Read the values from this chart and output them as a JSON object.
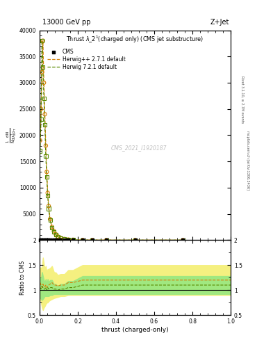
{
  "title_top": "13000 GeV pp",
  "title_right": "Z+Jet",
  "plot_title": "Thrust $\\lambda$_2$^1$(charged only) (CMS jet substructure)",
  "xlabel": "thrust (charged-only)",
  "ylabel_ratio": "Ratio to CMS",
  "right_label_top": "Rivet 3.1.10, ≥ 2.7M events",
  "right_label_bot": "mcplots.cern.ch [arXiv:1306.3436]",
  "watermark": "CMS_2021_I1920187",
  "xlim": [
    0.0,
    1.0
  ],
  "ylim_main": [
    0,
    40000
  ],
  "ylim_ratio": [
    0.5,
    2.0
  ],
  "yticks_main": [
    0,
    5000,
    10000,
    15000,
    20000,
    25000,
    30000,
    35000,
    40000
  ],
  "herwig_pp_x": [
    0.0025,
    0.0075,
    0.0125,
    0.0175,
    0.0225,
    0.0275,
    0.0325,
    0.0375,
    0.0425,
    0.0475,
    0.055,
    0.065,
    0.075,
    0.085,
    0.095,
    0.11,
    0.13,
    0.15,
    0.175,
    0.225,
    0.275,
    0.35,
    0.5,
    0.75
  ],
  "herwig_pp_y": [
    19000,
    25000,
    32000,
    38000,
    30000,
    24000,
    18000,
    13000,
    9000,
    6500,
    4000,
    2500,
    1700,
    1100,
    700,
    400,
    200,
    100,
    60,
    20,
    10,
    5,
    2,
    1
  ],
  "herwig7_x": [
    0.0025,
    0.0075,
    0.0125,
    0.0175,
    0.0225,
    0.0275,
    0.0325,
    0.0375,
    0.0425,
    0.0475,
    0.055,
    0.065,
    0.075,
    0.085,
    0.095,
    0.11,
    0.13,
    0.15,
    0.175,
    0.225,
    0.275,
    0.35,
    0.5,
    0.75
  ],
  "herwig7_y": [
    17000,
    23000,
    38000,
    33000,
    27000,
    22000,
    16000,
    12000,
    8500,
    6000,
    3800,
    2400,
    1600,
    1000,
    650,
    380,
    190,
    95,
    55,
    18,
    9,
    4,
    2,
    1
  ],
  "herwig_pp_color": "#d4820a",
  "herwig7_color": "#5a8a00",
  "cms_color": "#000000",
  "band_pp_color": "#f5f080",
  "band_h7_color": "#a0e880",
  "ratio_herwig_pp": [
    1.15,
    1.1,
    1.05,
    1.12,
    1.08,
    1.06,
    1.1,
    1.05,
    1.08,
    1.1,
    1.12,
    1.15,
    1.1,
    1.1,
    1.08,
    1.1,
    1.1,
    1.15,
    1.15,
    1.2,
    1.2,
    1.2,
    1.2,
    1.2
  ],
  "ratio_herwig7": [
    1.05,
    1.02,
    1.08,
    1.05,
    1.02,
    1.02,
    1.05,
    1.0,
    1.05,
    1.02,
    1.05,
    1.05,
    1.02,
    1.02,
    1.0,
    1.02,
    1.02,
    1.05,
    1.05,
    1.1,
    1.1,
    1.1,
    1.1,
    1.1
  ],
  "band_pp_lo": [
    0.85,
    0.75,
    0.65,
    0.6,
    0.65,
    0.68,
    0.72,
    0.75,
    0.75,
    0.78,
    0.8,
    0.82,
    0.84,
    0.85,
    0.86,
    0.88,
    0.88,
    0.9,
    0.9,
    0.9,
    0.9,
    0.9,
    0.9,
    0.9
  ],
  "band_pp_hi": [
    1.45,
    1.45,
    1.45,
    1.65,
    1.52,
    1.44,
    1.48,
    1.35,
    1.42,
    1.42,
    1.44,
    1.48,
    1.36,
    1.35,
    1.3,
    1.32,
    1.32,
    1.4,
    1.4,
    1.5,
    1.5,
    1.5,
    1.5,
    1.5
  ],
  "band_h7_lo": [
    0.85,
    0.82,
    0.8,
    0.82,
    0.85,
    0.88,
    0.88,
    0.88,
    0.88,
    0.88,
    0.9,
    0.9,
    0.92,
    0.92,
    0.92,
    0.92,
    0.92,
    0.92,
    0.92,
    0.92,
    0.92,
    0.92,
    0.92,
    0.92
  ],
  "band_h7_hi": [
    1.25,
    1.22,
    1.36,
    1.28,
    1.2,
    1.16,
    1.22,
    1.12,
    1.22,
    1.16,
    1.2,
    1.2,
    1.12,
    1.12,
    1.08,
    1.12,
    1.12,
    1.18,
    1.18,
    1.28,
    1.28,
    1.28,
    1.28,
    1.28
  ]
}
